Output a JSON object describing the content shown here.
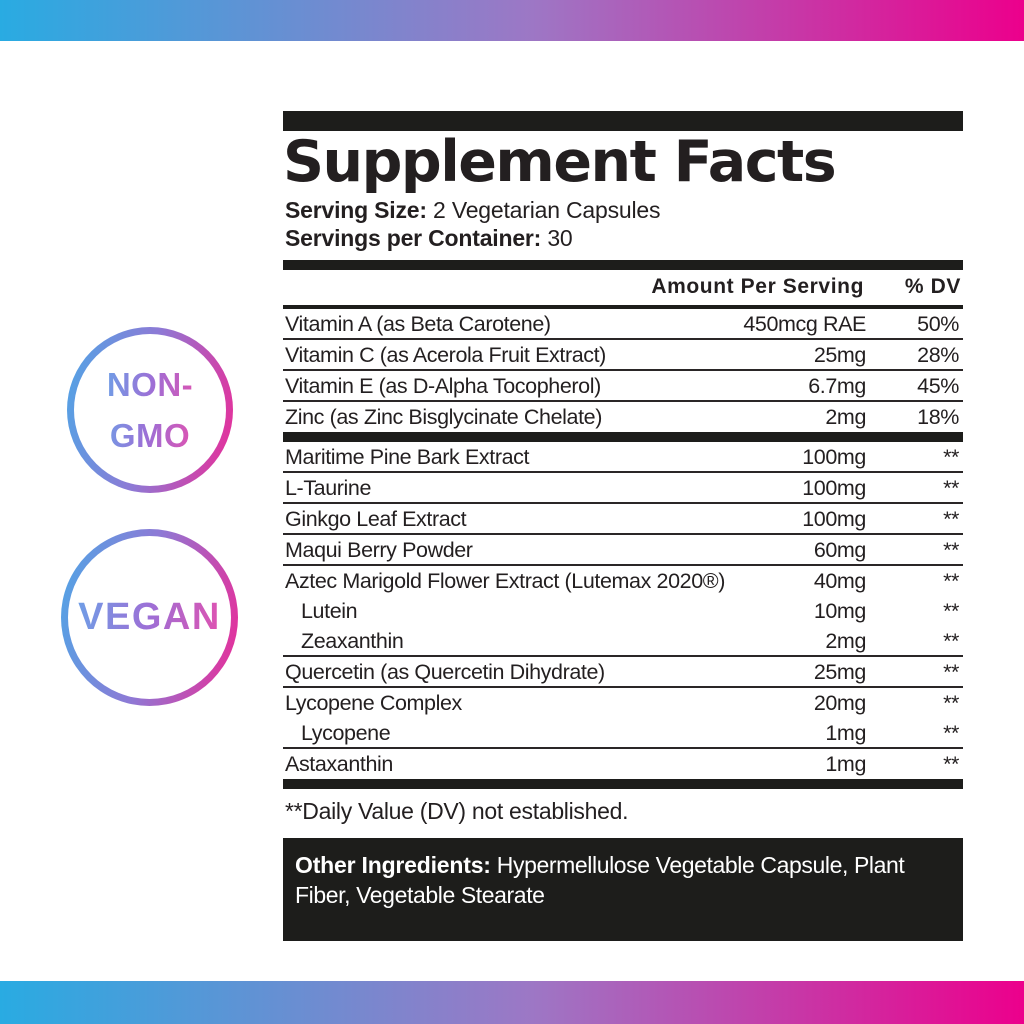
{
  "theme": {
    "gradient_blue": "#29abe2",
    "gradient_purple_mid": "#9d77c5",
    "gradient_pink": "#ec008c",
    "text_black": "#231f20",
    "panel_bar_black": "#1d1d1b"
  },
  "badges": {
    "non_gmo": {
      "line1": "NON-",
      "line2": "GMO"
    },
    "vegan": {
      "label": "VEGAN"
    }
  },
  "panel": {
    "title": "Supplement Facts",
    "serving_size_label": "Serving Size:",
    "serving_size_value": "2 Vegetarian Capsules",
    "servings_per_container_label": "Servings per Container:",
    "servings_per_container_value": "30",
    "columns": {
      "amount": "Amount Per Serving",
      "dv": "% DV"
    },
    "rows": [
      {
        "name": "Vitamin A (as Beta Carotene)",
        "amount": "450mcg RAE",
        "dv": "50%",
        "indent": false,
        "divider": true,
        "thick_after": false
      },
      {
        "name": "Vitamin C (as Acerola Fruit Extract)",
        "amount": "25mg",
        "dv": "28%",
        "indent": false,
        "divider": true,
        "thick_after": false
      },
      {
        "name": "Vitamin E (as D-Alpha Tocopherol)",
        "amount": "6.7mg",
        "dv": "45%",
        "indent": false,
        "divider": true,
        "thick_after": false
      },
      {
        "name": "Zinc (as Zinc Bisglycinate Chelate)",
        "amount": "2mg",
        "dv": "18%",
        "indent": false,
        "divider": false,
        "thick_after": true
      },
      {
        "name": "Maritime Pine Bark Extract",
        "amount": "100mg",
        "dv": "**",
        "indent": false,
        "divider": true,
        "thick_after": false
      },
      {
        "name": "L-Taurine",
        "amount": "100mg",
        "dv": "**",
        "indent": false,
        "divider": true,
        "thick_after": false
      },
      {
        "name": "Ginkgo Leaf Extract",
        "amount": "100mg",
        "dv": "**",
        "indent": false,
        "divider": true,
        "thick_after": false
      },
      {
        "name": "Maqui Berry Powder",
        "amount": "60mg",
        "dv": "**",
        "indent": false,
        "divider": true,
        "thick_after": false
      },
      {
        "name": "Aztec Marigold Flower Extract (Lutemax 2020®)",
        "amount": "40mg",
        "dv": "**",
        "indent": false,
        "divider": false,
        "thick_after": false
      },
      {
        "name": "Lutein",
        "amount": "10mg",
        "dv": "**",
        "indent": true,
        "divider": false,
        "thick_after": false
      },
      {
        "name": "Zeaxanthin",
        "amount": "2mg",
        "dv": "**",
        "indent": true,
        "divider": true,
        "thick_after": false
      },
      {
        "name": "Quercetin (as Quercetin Dihydrate)",
        "amount": "25mg",
        "dv": "**",
        "indent": false,
        "divider": true,
        "thick_after": false
      },
      {
        "name": "Lycopene Complex",
        "amount": "20mg",
        "dv": "**",
        "indent": false,
        "divider": false,
        "thick_after": false
      },
      {
        "name": "Lycopene",
        "amount": "1mg",
        "dv": "**",
        "indent": true,
        "divider": true,
        "thick_after": false
      },
      {
        "name": "Astaxanthin",
        "amount": "1mg",
        "dv": "**",
        "indent": false,
        "divider": false,
        "thick_after": true
      }
    ],
    "footnote": "**Daily Value (DV) not established.",
    "other_ingredients_label": "Other Ingredients:",
    "other_ingredients_value": "Hypermellulose Vegetable Capsule, Plant Fiber, Vegetable Stearate"
  }
}
